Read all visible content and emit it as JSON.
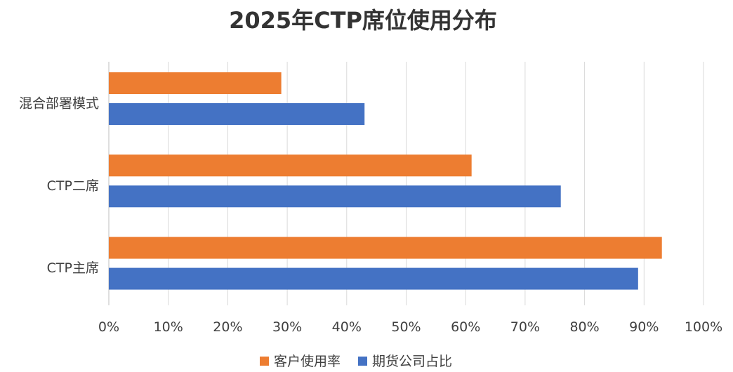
{
  "chart_data": {
    "type": "bar",
    "orientation": "horizontal",
    "title": "2025年CTP席位使用分布",
    "categories": [
      "混合部署模式",
      "CTP二席",
      "CTP主席"
    ],
    "series": [
      {
        "name": "客户使用率",
        "color": "#ED7D31",
        "values": [
          29,
          61,
          93
        ]
      },
      {
        "name": "期货公司占比",
        "color": "#4472C4",
        "values": [
          43,
          76,
          89
        ]
      }
    ],
    "xlim": [
      0,
      100
    ],
    "xticks": [
      0,
      10,
      20,
      30,
      40,
      50,
      60,
      70,
      80,
      90,
      100
    ],
    "tick_labels": [
      "0%",
      "10%",
      "20%",
      "30%",
      "40%",
      "50%",
      "60%",
      "70%",
      "80%",
      "90%",
      "100%"
    ],
    "xlabel": "",
    "ylabel": "",
    "grid": true,
    "legend_position": "bottom"
  }
}
